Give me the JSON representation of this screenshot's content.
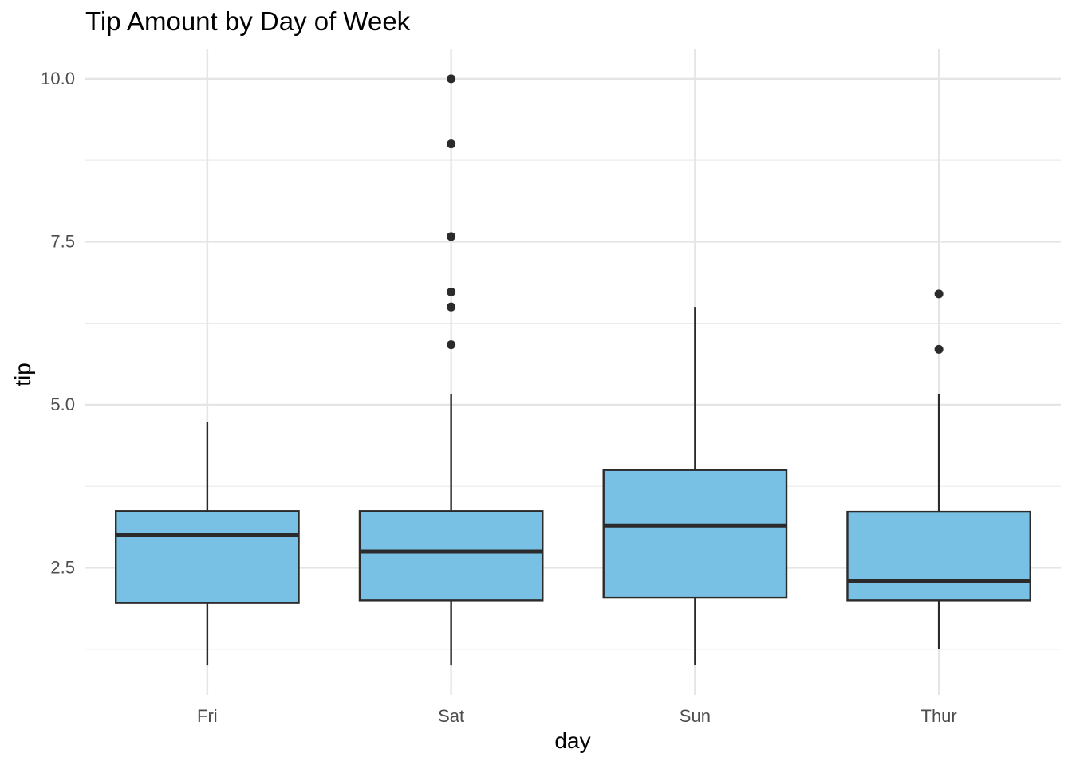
{
  "chart_data": {
    "type": "boxplot",
    "title": "Tip Amount by Day of Week",
    "xlabel": "day",
    "ylabel": "tip",
    "categories": [
      "Fri",
      "Sat",
      "Sun",
      "Thur"
    ],
    "ylim": [
      0.55,
      10.45
    ],
    "yticks": [
      2.5,
      5.0,
      7.5,
      10.0
    ],
    "ytick_labels": [
      "2.5",
      "5.0",
      "7.5",
      "10.0"
    ],
    "grid": true,
    "box_fill": "#79c1e4",
    "box_stroke": "#2b2b2b",
    "boxes": [
      {
        "category": "Fri",
        "min": 1.0,
        "q1": 1.96,
        "median": 3.0,
        "q3": 3.37,
        "max": 4.73,
        "outliers": []
      },
      {
        "category": "Sat",
        "min": 1.0,
        "q1": 2.0,
        "median": 2.75,
        "q3": 3.37,
        "max": 5.16,
        "outliers": [
          5.92,
          6.5,
          6.73,
          7.58,
          9.0,
          10.0
        ]
      },
      {
        "category": "Sun",
        "min": 1.01,
        "q1": 2.04,
        "median": 3.15,
        "q3": 4.0,
        "max": 6.5,
        "outliers": []
      },
      {
        "category": "Thur",
        "min": 1.25,
        "q1": 2.0,
        "median": 2.3,
        "q3": 3.36,
        "max": 5.17,
        "outliers": [
          5.85,
          6.7
        ]
      }
    ]
  }
}
